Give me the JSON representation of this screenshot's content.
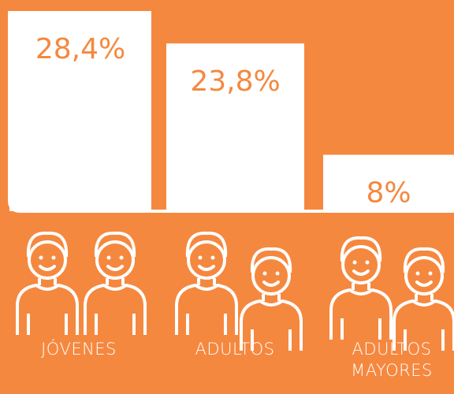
{
  "chart_data": {
    "type": "bar",
    "categories": [
      "JÓVENES",
      "ADULTOS",
      "ADULTOS MAYORES"
    ],
    "values": [
      28.4,
      23.8,
      8
    ],
    "value_labels": [
      "28,4%",
      "23,8%",
      "8%"
    ],
    "color": "#ffffff"
  }
}
